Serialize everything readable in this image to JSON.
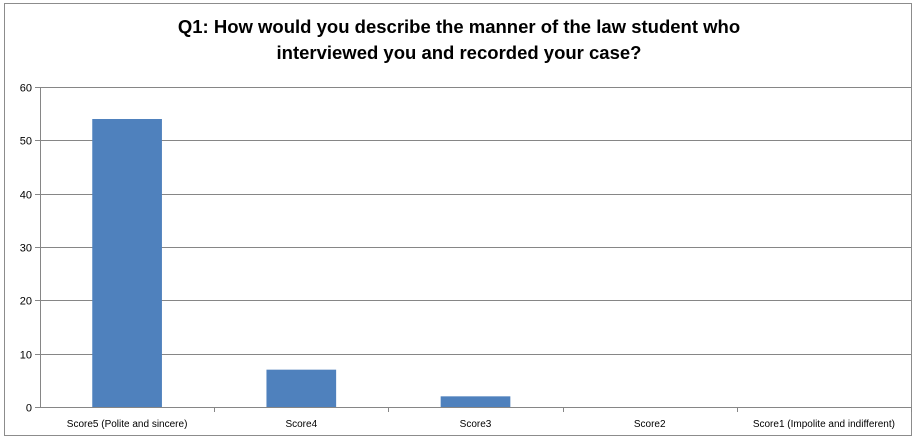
{
  "chart_data": {
    "type": "bar",
    "title_lines": [
      "Q1: How would you describe the manner of the law student who",
      "interviewed you and recorded your case?"
    ],
    "categories": [
      "Score5 (Polite and sincere)",
      "Score4",
      "Score3",
      "Score2",
      "Score1 (Impolite and indifferent)"
    ],
    "values": [
      54,
      7,
      2,
      0,
      0
    ],
    "ylim": [
      0,
      60
    ],
    "yticks": [
      0,
      10,
      20,
      30,
      40,
      50,
      60
    ],
    "grid": true,
    "legend": false,
    "bar_color": "#4f81bd"
  }
}
